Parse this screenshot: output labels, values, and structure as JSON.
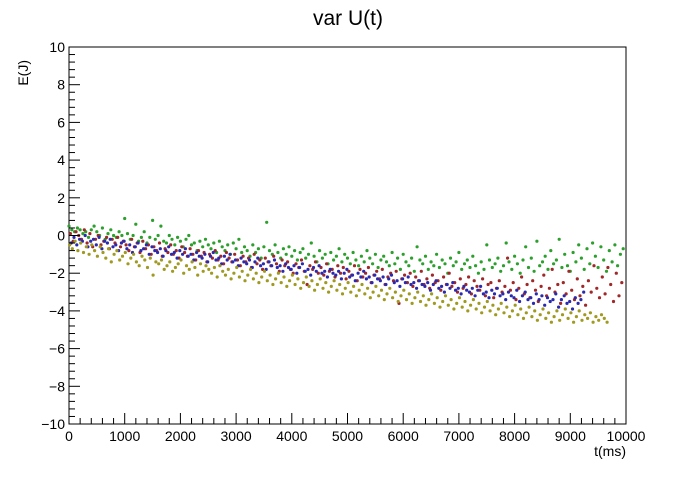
{
  "chart_data": {
    "type": "scatter",
    "title": "var U(t)",
    "xlabel": "t(ms)",
    "ylabel": "E(J)",
    "xlim": [
      0,
      10000
    ],
    "ylim": [
      -10,
      10
    ],
    "xticks": [
      0,
      1000,
      2000,
      3000,
      4000,
      5000,
      6000,
      7000,
      8000,
      9000,
      10000
    ],
    "yticks": [
      -10,
      -8,
      -6,
      -4,
      -2,
      0,
      2,
      4,
      6,
      8,
      10
    ],
    "xtick_labels": [
      "0",
      "1000",
      "2000",
      "3000",
      "4000",
      "5000",
      "6000",
      "7000",
      "8000",
      "9000",
      "10000"
    ],
    "ytick_labels": [
      "−10",
      "−8",
      "−6",
      "−4",
      "−2",
      "0",
      "2",
      "4",
      "6",
      "8",
      "10"
    ],
    "grid": false,
    "legend": "none",
    "series": [
      {
        "color": "#2ca02c",
        "x_start": 0,
        "x_step": 50,
        "y": [
          0.5,
          0.3,
          0.2,
          0.4,
          0.3,
          0.1,
          0.2,
          -0.1,
          0.3,
          0.5,
          0.2,
          0.0,
          0.4,
          -0.2,
          0.1,
          0.3,
          0.0,
          -0.1,
          0.2,
          0.0,
          0.9,
          0.1,
          -0.2,
          0.0,
          0.6,
          -0.3,
          -0.1,
          0.2,
          -0.4,
          -0.1,
          0.8,
          -0.2,
          0.0,
          0.5,
          -0.3,
          -0.4,
          0.0,
          -0.2,
          -0.5,
          -0.1,
          -0.3,
          -0.6,
          -0.2,
          0.0,
          -0.5,
          -0.4,
          -0.8,
          -0.3,
          -0.6,
          -0.2,
          -0.5,
          -0.7,
          -0.4,
          -0.9,
          -0.3,
          -0.6,
          -0.8,
          -0.5,
          -1.0,
          -0.4,
          -0.7,
          -0.2,
          -0.9,
          -0.6,
          -0.8,
          -1.1,
          -0.5,
          -0.9,
          -0.7,
          -1.2,
          -0.6,
          0.7,
          -0.8,
          -1.0,
          -0.5,
          -0.9,
          -1.2,
          -0.7,
          -1.0,
          -0.6,
          -1.1,
          -0.8,
          -1.3,
          -0.9,
          -0.7,
          -1.2,
          -1.0,
          -0.4,
          -1.1,
          -1.4,
          -0.8,
          -1.2,
          -1.0,
          -1.5,
          -0.9,
          -1.3,
          -1.1,
          -0.7,
          -1.4,
          -1.0,
          -1.2,
          -1.5,
          -0.9,
          -1.3,
          -1.6,
          -1.1,
          -1.4,
          -0.8,
          -1.2,
          -1.5,
          -1.0,
          -1.7,
          -1.3,
          -1.1,
          -1.4,
          -1.6,
          -0.9,
          -1.5,
          -1.2,
          -1.8,
          -1.0,
          -1.4,
          -1.6,
          -1.2,
          -1.9,
          -0.6,
          -1.3,
          -1.5,
          -1.1,
          -1.8,
          -1.4,
          -1.6,
          -1.0,
          -1.7,
          -1.3,
          -1.5,
          -2.0,
          -1.2,
          -1.6,
          -1.4,
          -0.9,
          -1.8,
          -1.5,
          -1.3,
          -1.7,
          -1.1,
          -1.6,
          -2.0,
          -1.4,
          -1.8,
          -0.5,
          -1.3,
          -1.7,
          -1.5,
          -1.2,
          -1.9,
          -1.6,
          -0.4,
          -1.4,
          -1.8,
          -1.1,
          -1.5,
          -2.0,
          -1.3,
          -0.6,
          -1.7,
          -1.2,
          -1.9,
          -0.3,
          -1.6,
          -1.4,
          -1.1,
          -1.8,
          -0.8,
          -1.5,
          -1.3,
          -0.2,
          -1.7,
          -1.0,
          -1.6,
          -1.9,
          -0.9,
          -1.4,
          -0.5,
          -1.2,
          -1.8,
          -0.7,
          -1.5,
          -0.4,
          -1.1,
          -1.7,
          -0.6,
          -1.3,
          -1.9,
          -0.8,
          -1.4,
          -0.5,
          -1.6,
          -1.0,
          -0.7
        ]
      },
      {
        "color": "#a02828",
        "x_start": 25,
        "x_step": 50,
        "y": [
          0.1,
          -0.3,
          0.2,
          0.0,
          -0.2,
          0.3,
          -0.4,
          0.1,
          -0.6,
          -0.2,
          0.0,
          -0.5,
          -0.3,
          -0.1,
          -0.7,
          -0.2,
          -0.4,
          -0.1,
          -0.6,
          -0.3,
          -0.5,
          -0.8,
          -0.2,
          -0.6,
          -0.4,
          -0.9,
          -0.3,
          -0.7,
          -0.5,
          -1.0,
          -0.6,
          -0.8,
          -0.4,
          -1.1,
          -0.7,
          -0.9,
          -0.5,
          -1.0,
          -0.8,
          -1.2,
          -0.6,
          -0.9,
          -1.1,
          -0.7,
          -1.0,
          -1.3,
          -0.8,
          -1.1,
          -0.9,
          -1.4,
          -1.0,
          -1.2,
          -0.8,
          -1.3,
          -1.1,
          -1.5,
          -0.9,
          -1.2,
          -1.4,
          -1.0,
          -1.3,
          -1.6,
          -1.1,
          -1.4,
          -1.2,
          -1.7,
          -1.0,
          -1.5,
          -1.3,
          -1.8,
          -1.2,
          -1.4,
          -1.6,
          -1.1,
          -1.5,
          -1.9,
          -1.3,
          -1.6,
          -1.4,
          -1.8,
          -2.0,
          -1.5,
          -1.7,
          -1.3,
          -1.9,
          -2.6,
          -1.6,
          -1.8,
          -1.4,
          -2.0,
          -1.7,
          -2.1,
          -1.5,
          -1.9,
          -1.8,
          -2.2,
          -1.6,
          -2.0,
          -1.7,
          -2.3,
          -1.9,
          -2.1,
          -1.6,
          -2.4,
          -1.8,
          -2.2,
          -2.0,
          -1.7,
          -2.5,
          -2.1,
          -1.9,
          -2.3,
          -1.8,
          -2.6,
          -2.2,
          -2.0,
          -2.4,
          -1.9,
          -3.6,
          -2.3,
          -2.1,
          -2.5,
          -2.0,
          -2.7,
          -2.2,
          -2.4,
          -1.9,
          -2.6,
          -2.3,
          -2.8,
          -2.1,
          -2.5,
          -2.4,
          -2.9,
          -2.2,
          -2.6,
          -2.0,
          -2.7,
          -2.5,
          -3.0,
          -2.3,
          -2.8,
          -2.6,
          -2.2,
          -3.1,
          -2.4,
          -2.7,
          -2.9,
          -2.3,
          -3.2,
          -2.6,
          -2.5,
          -3.3,
          -2.8,
          -2.4,
          -3.0,
          -2.7,
          -1.2,
          -2.9,
          -2.5,
          -3.4,
          -2.8,
          -2.2,
          -3.1,
          -2.6,
          -3.3,
          -2.4,
          -2.9,
          -3.5,
          -2.7,
          -2.1,
          -3.2,
          -2.8,
          -1.8,
          -3.0,
          -2.6,
          -3.6,
          -2.5,
          -3.1,
          -1.9,
          -2.9,
          -3.4,
          -2.3,
          -3.2,
          -2.7,
          -3.7,
          -2.4,
          -3.0,
          -1.6,
          -2.8,
          -3.3,
          -2.2,
          -3.1,
          -1.7,
          -2.6,
          -3.5,
          -2.0,
          -3.2,
          -2.5
        ]
      },
      {
        "color": "#2a2ab0",
        "x_start": 40,
        "x_step": 50,
        "y": [
          -0.4,
          -0.1,
          -0.5,
          -0.2,
          -0.3,
          0.0,
          -0.6,
          -0.3,
          -0.2,
          -0.5,
          -0.1,
          -0.7,
          -0.3,
          -0.4,
          -0.2,
          -0.6,
          -0.5,
          -0.8,
          -0.4,
          -0.3,
          -0.7,
          -0.5,
          -0.9,
          -0.6,
          -0.4,
          -0.8,
          -0.7,
          -0.5,
          -1.0,
          -0.6,
          -0.8,
          -0.9,
          -0.7,
          -1.1,
          -0.8,
          -0.6,
          -1.0,
          -0.9,
          -1.2,
          -0.8,
          -1.0,
          -0.7,
          -1.1,
          -1.0,
          -1.3,
          -0.9,
          -1.1,
          -1.2,
          -1.0,
          -1.4,
          -1.1,
          -0.9,
          -1.3,
          -1.2,
          -1.5,
          -1.1,
          -1.3,
          -1.0,
          -1.4,
          -1.3,
          -1.6,
          -1.2,
          -1.4,
          -1.5,
          -1.3,
          -1.7,
          -1.4,
          -1.2,
          -1.6,
          -1.5,
          -1.8,
          -1.4,
          -1.6,
          -1.3,
          -1.7,
          -1.6,
          -1.9,
          -1.5,
          -1.7,
          -1.8,
          -1.6,
          -2.0,
          -1.7,
          -1.5,
          -1.9,
          -1.8,
          -2.1,
          -1.7,
          -1.9,
          -1.6,
          -2.0,
          -1.9,
          -2.2,
          -1.8,
          -2.0,
          -2.1,
          -1.9,
          -2.3,
          -2.0,
          -1.8,
          -2.2,
          -2.1,
          -2.4,
          -2.0,
          -2.2,
          -1.9,
          -2.3,
          -2.2,
          -2.5,
          -2.1,
          -2.3,
          -2.4,
          -2.2,
          -2.6,
          -2.3,
          -2.1,
          -2.5,
          -2.4,
          -2.7,
          -2.3,
          -2.5,
          -2.2,
          -2.6,
          -2.5,
          -2.8,
          -2.4,
          -2.6,
          -2.7,
          -2.5,
          -2.9,
          -2.6,
          -2.4,
          -2.8,
          -2.7,
          -3.0,
          -2.6,
          -2.8,
          -2.5,
          -2.9,
          -2.8,
          -3.1,
          -2.7,
          -2.9,
          -3.0,
          -2.8,
          -3.2,
          -2.9,
          -2.7,
          -3.1,
          -3.0,
          -3.3,
          -2.9,
          -3.1,
          -2.8,
          -3.2,
          -3.1,
          -3.4,
          -3.0,
          -3.2,
          -3.3,
          -2.9,
          -3.5,
          -3.2,
          -3.0,
          -3.4,
          -3.3,
          -3.6,
          -3.1,
          -3.4,
          -3.2,
          -3.7,
          -3.3,
          -3.5,
          -3.4,
          -3.1,
          -3.8,
          -3.4,
          -3.2,
          -3.6,
          -3.5,
          -3.9,
          -3.3,
          -3.6,
          -3.4,
          -3.0
        ]
      },
      {
        "color": "#a09a20",
        "x_start": 10,
        "x_step": 50,
        "y": [
          -0.5,
          -0.7,
          -0.3,
          -0.8,
          -0.4,
          -0.9,
          -0.6,
          -1.0,
          -0.5,
          -0.8,
          -1.1,
          -0.6,
          -0.9,
          -1.2,
          -0.7,
          -1.4,
          -1.0,
          -0.8,
          -1.3,
          -1.1,
          -0.9,
          -1.5,
          -1.2,
          -1.0,
          -1.4,
          -1.6,
          -1.1,
          -1.3,
          -1.7,
          -1.2,
          -2.1,
          -1.4,
          -1.5,
          -1.3,
          -1.8,
          -1.6,
          -1.4,
          -1.9,
          -1.7,
          -1.5,
          -1.3,
          -2.0,
          -1.6,
          -1.8,
          -1.4,
          -1.7,
          -2.1,
          -1.5,
          -1.9,
          -1.6,
          -1.8,
          -2.0,
          -1.7,
          -2.2,
          -1.6,
          -1.9,
          -2.1,
          -1.8,
          -2.3,
          -2.0,
          -1.7,
          -2.2,
          -1.9,
          -2.4,
          -2.1,
          -1.8,
          -2.3,
          -2.0,
          -2.5,
          -2.2,
          -1.9,
          -2.4,
          -2.1,
          -2.6,
          -2.3,
          -2.0,
          -2.5,
          -2.2,
          -2.7,
          -2.4,
          -2.1,
          -2.6,
          -2.3,
          -2.8,
          -2.5,
          -2.2,
          -2.7,
          -2.4,
          -2.9,
          -2.6,
          -2.3,
          -2.8,
          -2.5,
          -3.0,
          -2.7,
          -2.4,
          -2.9,
          -2.6,
          -3.1,
          -2.8,
          -2.5,
          -3.0,
          -2.7,
          -3.2,
          -2.9,
          -2.6,
          -3.1,
          -2.8,
          -3.3,
          -3.0,
          -2.7,
          -3.2,
          -2.9,
          -3.4,
          -3.1,
          -2.8,
          -3.3,
          -3.0,
          -3.5,
          -3.2,
          -2.9,
          -3.4,
          -3.1,
          -3.6,
          -3.3,
          -3.0,
          -3.5,
          -3.2,
          -3.7,
          -3.4,
          -3.1,
          -3.6,
          -3.3,
          -3.8,
          -3.5,
          -3.2,
          -3.7,
          -3.4,
          -3.9,
          -3.6,
          -3.3,
          -3.8,
          -3.5,
          -4.0,
          -3.7,
          -3.4,
          -3.9,
          -3.6,
          -4.1,
          -3.8,
          -3.5,
          -4.0,
          -3.7,
          -4.2,
          -3.9,
          -3.6,
          -4.1,
          -3.8,
          -4.3,
          -4.0,
          -3.7,
          -4.2,
          -3.9,
          -4.4,
          -4.1,
          -3.8,
          -4.3,
          -4.0,
          -4.5,
          -4.2,
          -3.9,
          -4.4,
          -4.1,
          -4.6,
          -4.3,
          -4.0,
          -4.5,
          -4.2,
          -3.9,
          -4.4,
          -4.1,
          -4.6,
          -4.3,
          -4.0,
          -4.5,
          -4.2,
          -4.4,
          -4.1,
          -4.6,
          -4.3,
          -4.5,
          -4.2,
          -4.4,
          -4.6
        ]
      }
    ]
  }
}
